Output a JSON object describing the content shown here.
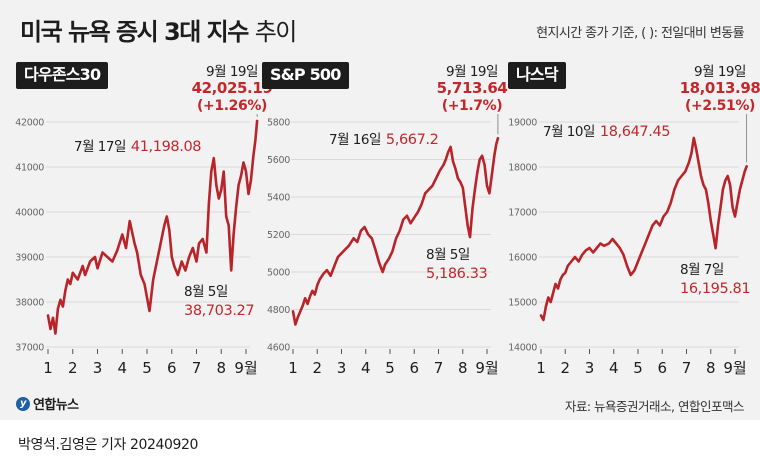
{
  "header": {
    "title_bold": "미국 뉴욕 증시 3대 지수",
    "title_light": "추이",
    "note": "현지시간 종가 기준, ( ): 전일대비 변동률"
  },
  "colors": {
    "accent": "#c3272b",
    "line": "#b8242a",
    "text": "#1d1d1d",
    "card": "#f2f2f2"
  },
  "chart_data": [
    {
      "type": "line",
      "name": "다우존스30",
      "ylim": [
        37000,
        42000
      ],
      "yticks": [
        37000,
        38000,
        39000,
        40000,
        41000,
        42000
      ],
      "x_labels": [
        "1",
        "2",
        "3",
        "4",
        "5",
        "6",
        "7",
        "8",
        "9월"
      ],
      "points": [
        [
          0.0,
          37700
        ],
        [
          0.1,
          37400
        ],
        [
          0.2,
          37650
        ],
        [
          0.3,
          37300
        ],
        [
          0.4,
          37850
        ],
        [
          0.5,
          38050
        ],
        [
          0.6,
          37900
        ],
        [
          0.7,
          38250
        ],
        [
          0.8,
          38500
        ],
        [
          0.9,
          38400
        ],
        [
          1.0,
          38650
        ],
        [
          1.2,
          38500
        ],
        [
          1.4,
          38800
        ],
        [
          1.5,
          38600
        ],
        [
          1.7,
          38900
        ],
        [
          1.9,
          39000
        ],
        [
          2.0,
          38750
        ],
        [
          2.2,
          39100
        ],
        [
          2.4,
          39000
        ],
        [
          2.6,
          38900
        ],
        [
          2.8,
          39150
        ],
        [
          3.0,
          39500
        ],
        [
          3.15,
          39200
        ],
        [
          3.3,
          39800
        ],
        [
          3.5,
          39300
        ],
        [
          3.6,
          39100
        ],
        [
          3.75,
          38600
        ],
        [
          3.9,
          38400
        ],
        [
          4.0,
          38100
        ],
        [
          4.1,
          37800
        ],
        [
          4.25,
          38500
        ],
        [
          4.4,
          38900
        ],
        [
          4.55,
          39300
        ],
        [
          4.7,
          39700
        ],
        [
          4.8,
          39900
        ],
        [
          4.9,
          39600
        ],
        [
          5.0,
          39000
        ],
        [
          5.1,
          38800
        ],
        [
          5.25,
          38600
        ],
        [
          5.4,
          38900
        ],
        [
          5.55,
          38700
        ],
        [
          5.7,
          39000
        ],
        [
          5.85,
          39200
        ],
        [
          6.0,
          38900
        ],
        [
          6.1,
          39300
        ],
        [
          6.25,
          39400
        ],
        [
          6.4,
          39100
        ],
        [
          6.5,
          40200
        ],
        [
          6.6,
          40900
        ],
        [
          6.7,
          41198.08
        ],
        [
          6.8,
          40600
        ],
        [
          6.9,
          40300
        ],
        [
          7.0,
          40500
        ],
        [
          7.1,
          40900
        ],
        [
          7.2,
          39900
        ],
        [
          7.3,
          39700
        ],
        [
          7.4,
          38703.27
        ],
        [
          7.5,
          39500
        ],
        [
          7.6,
          40100
        ],
        [
          7.7,
          40600
        ],
        [
          7.8,
          40800
        ],
        [
          7.9,
          41100
        ],
        [
          8.0,
          40900
        ],
        [
          8.1,
          40400
        ],
        [
          8.2,
          40700
        ],
        [
          8.3,
          41250
        ],
        [
          8.38,
          41600
        ],
        [
          8.45,
          42025.19
        ]
      ],
      "annotations": [
        {
          "label": "9월 19일",
          "value": "42,025.19",
          "change": "(+1.26%)"
        },
        {
          "label": "7월 17일",
          "value": "41,198.08"
        },
        {
          "label": "8월 5일",
          "value": "38,703.27"
        }
      ]
    },
    {
      "type": "line",
      "name": "S&P 500",
      "ylim": [
        4600,
        5800
      ],
      "yticks": [
        4600,
        4800,
        5000,
        5200,
        5400,
        5600,
        5800
      ],
      "x_labels": [
        "1",
        "2",
        "3",
        "4",
        "5",
        "6",
        "7",
        "8",
        "9월"
      ],
      "points": [
        [
          0.0,
          4790
        ],
        [
          0.1,
          4720
        ],
        [
          0.2,
          4760
        ],
        [
          0.3,
          4790
        ],
        [
          0.4,
          4820
        ],
        [
          0.5,
          4860
        ],
        [
          0.6,
          4830
        ],
        [
          0.7,
          4870
        ],
        [
          0.8,
          4900
        ],
        [
          0.9,
          4880
        ],
        [
          1.0,
          4930
        ],
        [
          1.1,
          4960
        ],
        [
          1.25,
          4990
        ],
        [
          1.4,
          5010
        ],
        [
          1.55,
          4980
        ],
        [
          1.7,
          5030
        ],
        [
          1.85,
          5080
        ],
        [
          2.0,
          5100
        ],
        [
          2.15,
          5120
        ],
        [
          2.3,
          5140
        ],
        [
          2.5,
          5180
        ],
        [
          2.65,
          5160
        ],
        [
          2.8,
          5220
        ],
        [
          2.95,
          5240
        ],
        [
          3.1,
          5200
        ],
        [
          3.25,
          5180
        ],
        [
          3.4,
          5120
        ],
        [
          3.55,
          5050
        ],
        [
          3.7,
          5000
        ],
        [
          3.8,
          5040
        ],
        [
          3.95,
          5070
        ],
        [
          4.1,
          5110
        ],
        [
          4.25,
          5180
        ],
        [
          4.4,
          5220
        ],
        [
          4.55,
          5280
        ],
        [
          4.7,
          5300
        ],
        [
          4.85,
          5260
        ],
        [
          5.0,
          5290
        ],
        [
          5.15,
          5320
        ],
        [
          5.3,
          5360
        ],
        [
          5.45,
          5420
        ],
        [
          5.6,
          5440
        ],
        [
          5.75,
          5460
        ],
        [
          5.9,
          5500
        ],
        [
          6.05,
          5540
        ],
        [
          6.2,
          5570
        ],
        [
          6.3,
          5600
        ],
        [
          6.4,
          5640
        ],
        [
          6.5,
          5667.2
        ],
        [
          6.6,
          5590
        ],
        [
          6.7,
          5550
        ],
        [
          6.8,
          5500
        ],
        [
          6.9,
          5480
        ],
        [
          7.0,
          5450
        ],
        [
          7.1,
          5350
        ],
        [
          7.2,
          5250
        ],
        [
          7.3,
          5186.33
        ],
        [
          7.4,
          5340
        ],
        [
          7.5,
          5440
        ],
        [
          7.6,
          5530
        ],
        [
          7.7,
          5600
        ],
        [
          7.8,
          5620
        ],
        [
          7.9,
          5570
        ],
        [
          8.0,
          5460
        ],
        [
          8.1,
          5420
        ],
        [
          8.2,
          5520
        ],
        [
          8.3,
          5620
        ],
        [
          8.38,
          5680
        ],
        [
          8.45,
          5713.64
        ]
      ],
      "annotations": [
        {
          "label": "9월 19일",
          "value": "5,713.64",
          "change": "(+1.7%)"
        },
        {
          "label": "7월 16일",
          "value": "5,667.2"
        },
        {
          "label": "8월 5일",
          "value": "5,186.33"
        }
      ]
    },
    {
      "type": "line",
      "name": "나스닥",
      "ylim": [
        14000,
        19000
      ],
      "yticks": [
        14000,
        15000,
        16000,
        17000,
        18000,
        19000
      ],
      "x_labels": [
        "1",
        "2",
        "3",
        "4",
        "5",
        "6",
        "7",
        "8",
        "9월"
      ],
      "points": [
        [
          0.0,
          14700
        ],
        [
          0.1,
          14600
        ],
        [
          0.2,
          14900
        ],
        [
          0.3,
          15100
        ],
        [
          0.4,
          15000
        ],
        [
          0.5,
          15200
        ],
        [
          0.6,
          15400
        ],
        [
          0.7,
          15300
        ],
        [
          0.8,
          15500
        ],
        [
          0.9,
          15600
        ],
        [
          1.0,
          15650
        ],
        [
          1.1,
          15800
        ],
        [
          1.25,
          15900
        ],
        [
          1.4,
          16000
        ],
        [
          1.55,
          15900
        ],
        [
          1.7,
          16050
        ],
        [
          1.85,
          16150
        ],
        [
          2.0,
          16200
        ],
        [
          2.15,
          16100
        ],
        [
          2.3,
          16200
        ],
        [
          2.45,
          16300
        ],
        [
          2.6,
          16250
        ],
        [
          2.8,
          16300
        ],
        [
          2.95,
          16400
        ],
        [
          3.1,
          16300
        ],
        [
          3.25,
          16200
        ],
        [
          3.4,
          16050
        ],
        [
          3.55,
          15800
        ],
        [
          3.7,
          15600
        ],
        [
          3.85,
          15700
        ],
        [
          4.0,
          15900
        ],
        [
          4.15,
          16100
        ],
        [
          4.3,
          16300
        ],
        [
          4.45,
          16500
        ],
        [
          4.6,
          16700
        ],
        [
          4.75,
          16800
        ],
        [
          4.9,
          16700
        ],
        [
          5.05,
          16900
        ],
        [
          5.2,
          17000
        ],
        [
          5.35,
          17200
        ],
        [
          5.5,
          17500
        ],
        [
          5.65,
          17700
        ],
        [
          5.8,
          17800
        ],
        [
          5.95,
          17900
        ],
        [
          6.1,
          18100
        ],
        [
          6.2,
          18300
        ],
        [
          6.3,
          18647.45
        ],
        [
          6.4,
          18400
        ],
        [
          6.5,
          18100
        ],
        [
          6.6,
          17800
        ],
        [
          6.7,
          17600
        ],
        [
          6.8,
          17500
        ],
        [
          6.9,
          17200
        ],
        [
          7.0,
          16800
        ],
        [
          7.1,
          16500
        ],
        [
          7.2,
          16195.81
        ],
        [
          7.3,
          16700
        ],
        [
          7.4,
          17100
        ],
        [
          7.5,
          17500
        ],
        [
          7.6,
          17700
        ],
        [
          7.7,
          17800
        ],
        [
          7.8,
          17600
        ],
        [
          7.9,
          17100
        ],
        [
          8.0,
          16900
        ],
        [
          8.1,
          17200
        ],
        [
          8.2,
          17500
        ],
        [
          8.3,
          17700
        ],
        [
          8.4,
          17900
        ],
        [
          8.48,
          18013.98
        ]
      ],
      "annotations": [
        {
          "label": "9월 19일",
          "value": "18,013.98",
          "change": "(+2.51%)"
        },
        {
          "label": "7월 10일",
          "value": "18,647.45"
        },
        {
          "label": "8월 7일",
          "value": "16,195.81"
        }
      ]
    }
  ],
  "footer": {
    "logo": "연합뉴스",
    "source": "자료: 뉴욕증권거래소, 연합인포맥스",
    "byline": "박영석.김영은 기자  20240920"
  }
}
